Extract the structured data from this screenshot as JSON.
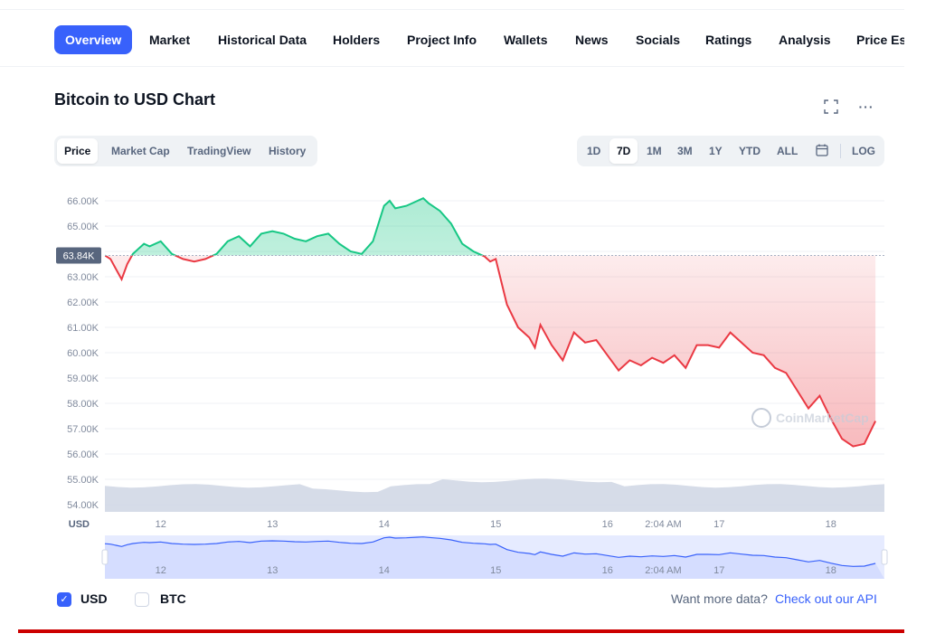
{
  "nav": {
    "tabs": [
      {
        "label": "Overview",
        "active": true
      },
      {
        "label": "Market"
      },
      {
        "label": "Historical Data"
      },
      {
        "label": "Holders"
      },
      {
        "label": "Project Info"
      },
      {
        "label": "Wallets"
      },
      {
        "label": "News"
      },
      {
        "label": "Socials"
      },
      {
        "label": "Ratings"
      },
      {
        "label": "Analysis"
      },
      {
        "label": "Price Es"
      }
    ]
  },
  "header": {
    "title": "Bitcoin to USD Chart",
    "fullscreen_icon": "expand-icon",
    "more_icon": "more-dots-icon",
    "more_glyph": "···"
  },
  "view_tabs": [
    "Price",
    "Market Cap",
    "TradingView",
    "History"
  ],
  "range_tabs": [
    "1D",
    "7D",
    "1M",
    "3M",
    "1Y",
    "YTD",
    "ALL"
  ],
  "range_extra": {
    "calendar_icon": "calendar-icon",
    "log_label": "LOG"
  },
  "colors": {
    "up": "#16c784",
    "down": "#ea3943",
    "accent": "#3861fb",
    "volume": "#cfd6e4"
  },
  "watermark": "CoinMarketCap",
  "chart_data": {
    "type": "line",
    "ylim": [
      54000,
      66500
    ],
    "y_ticks": [
      "66.00K",
      "65.00K",
      "64.00K",
      "63.00K",
      "62.00K",
      "61.00K",
      "60.00K",
      "59.00K",
      "58.00K",
      "57.00K",
      "56.00K",
      "55.00K",
      "54.00K"
    ],
    "y_unit": "USD",
    "reference_label": "63.84K",
    "reference_value": 63840,
    "x_ticks": [
      "12",
      "13",
      "14",
      "15",
      "16",
      "2:04 AM",
      "17",
      "18"
    ],
    "series": [
      {
        "x": [
          11.5,
          11.55,
          11.6,
          11.65,
          11.7,
          11.75,
          11.8,
          11.85,
          11.9,
          12.0,
          12.1,
          12.2,
          12.3,
          12.4,
          12.5,
          12.6,
          12.7,
          12.8,
          12.9,
          13.0,
          13.1,
          13.2,
          13.3,
          13.4,
          13.5,
          13.6,
          13.7,
          13.8,
          13.9,
          14.0,
          14.05,
          14.1,
          14.2,
          14.3,
          14.35,
          14.4,
          14.5,
          14.6,
          14.7,
          14.8,
          14.85,
          14.9,
          14.95,
          15.0,
          15.05,
          15.1,
          15.2,
          15.3,
          15.35,
          15.4,
          15.5,
          15.6,
          15.7,
          15.8,
          15.9,
          16.0,
          16.1,
          16.2,
          16.3,
          16.4,
          16.5,
          16.6,
          16.7,
          16.8,
          16.9,
          17.0,
          17.1,
          17.2,
          17.3,
          17.4,
          17.5,
          17.6,
          17.7,
          17.8,
          17.9,
          18.0,
          18.1,
          18.2,
          18.3,
          18.4
        ],
        "values": [
          63840,
          63700,
          63300,
          62900,
          63500,
          63900,
          64100,
          64300,
          64200,
          64400,
          63900,
          63700,
          63600,
          63700,
          63900,
          64400,
          64600,
          64200,
          64700,
          64800,
          64700,
          64500,
          64400,
          64600,
          64700,
          64300,
          64000,
          63900,
          64400,
          65800,
          66000,
          65700,
          65800,
          66000,
          66100,
          65900,
          65600,
          65100,
          64300,
          64000,
          63900,
          63800,
          63600,
          63700,
          62800,
          61900,
          61000,
          60600,
          60200,
          61100,
          60300,
          59700,
          60800,
          60400,
          60500,
          59900,
          59300,
          59700,
          59500,
          59800,
          59600,
          59900,
          59400,
          60300,
          60300,
          60200,
          60800,
          60400,
          60000,
          59900,
          59400,
          59200,
          58500,
          57800,
          58300,
          57400,
          56600,
          56300,
          56400,
          57300
        ]
      }
    ],
    "volume_level": 0.8,
    "grid": true
  },
  "navigator": {
    "x_ticks": [
      "12",
      "13",
      "14",
      "15",
      "16",
      "2:04 AM",
      "17",
      "18"
    ]
  },
  "currency_toggle": {
    "usd_label": "USD",
    "usd_checked": true,
    "btc_label": "BTC",
    "btc_checked": false
  },
  "more_data": {
    "text": "Want more data?",
    "link": "Check out our API"
  }
}
